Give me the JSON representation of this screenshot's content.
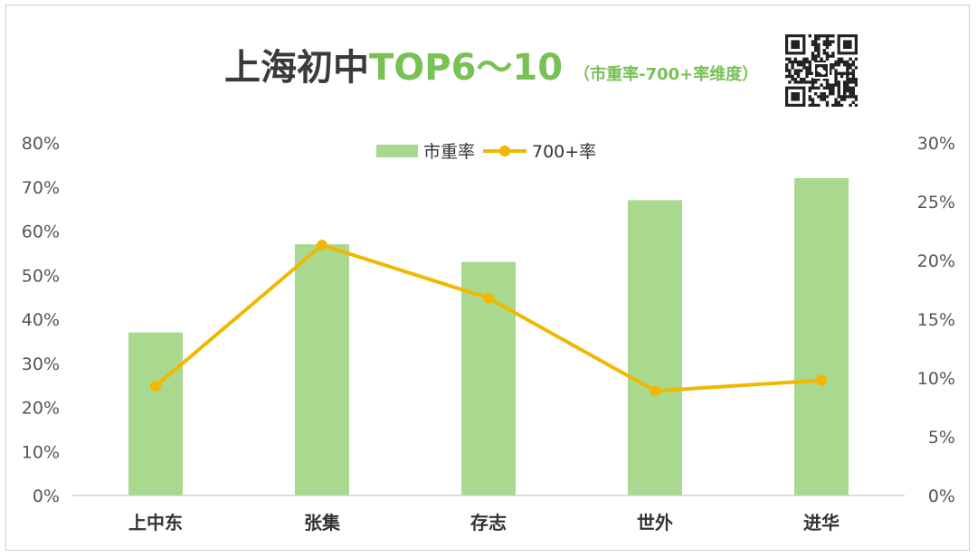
{
  "title": {
    "main": "上海初中",
    "accent": "TOP6～10",
    "sub": "（市重率-700+率维度）"
  },
  "qr_code": {
    "icon": "wechat-qr-code"
  },
  "colors": {
    "bar": "#a9d98f",
    "line": "#f0b800",
    "axis_text": "#555555",
    "title_dark": "#3a3a3a",
    "title_green": "#77c155"
  },
  "chart_data": {
    "type": "bar",
    "categories": [
      "上中东",
      "张集",
      "存志",
      "世外",
      "进华"
    ],
    "series": [
      {
        "name": "市重率",
        "type": "bar",
        "axis": "left",
        "values": [
          37,
          57,
          53,
          67,
          72
        ]
      },
      {
        "name": "700+率",
        "type": "line",
        "axis": "right",
        "values": [
          9.3,
          21.3,
          16.8,
          8.9,
          9.8
        ]
      }
    ],
    "y_left": {
      "min": 0,
      "max": 80,
      "step": 10,
      "unit": "%"
    },
    "y_right": {
      "min": 0,
      "max": 30,
      "step": 5,
      "unit": "%"
    },
    "legend": {
      "position": "top-center"
    },
    "grid": false
  }
}
